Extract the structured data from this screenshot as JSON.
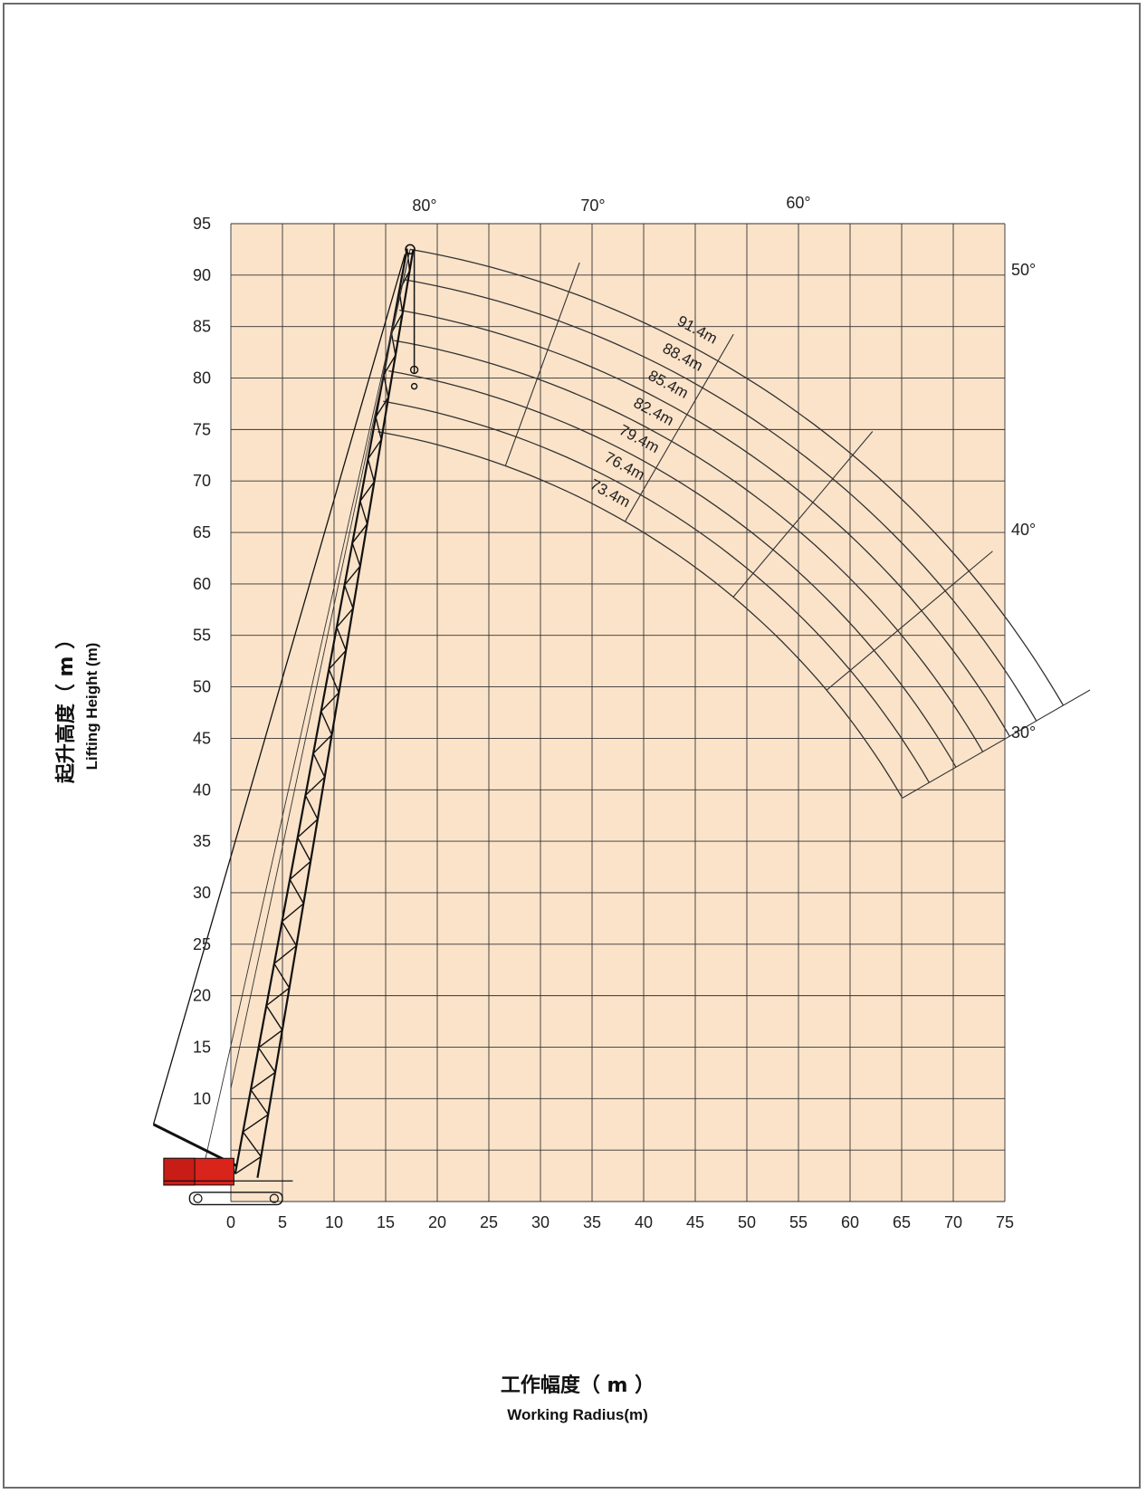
{
  "chart_data": {
    "type": "line",
    "title": "",
    "xlabel_cn": "工作幅度（ m ）",
    "xlabel": "Working Radius(m)",
    "ylabel_cn": "起升高度（ m ）",
    "ylabel": "Lifting Height (m)",
    "xlim": [
      0,
      75
    ],
    "ylim": [
      0,
      95
    ],
    "x_ticks": [
      "0",
      "5",
      "10",
      "15",
      "20",
      "25",
      "30",
      "35",
      "40",
      "45",
      "50",
      "55",
      "60",
      "65",
      "70",
      "75"
    ],
    "y_ticks": [
      "10",
      "15",
      "20",
      "25",
      "30",
      "35",
      "40",
      "45",
      "50",
      "55",
      "60",
      "65",
      "70",
      "75",
      "80",
      "85",
      "90",
      "95"
    ],
    "grid": true,
    "boom_lengths": [
      {
        "label": "91.4m",
        "length": 91.4
      },
      {
        "label": "88.4m",
        "length": 88.4
      },
      {
        "label": "85.4m",
        "length": 85.4
      },
      {
        "label": "82.4m",
        "length": 82.4
      },
      {
        "label": "79.4m",
        "length": 79.4
      },
      {
        "label": "76.4m",
        "length": 76.4
      },
      {
        "label": "73.4m",
        "length": 73.4
      }
    ],
    "boom_angles": [
      {
        "label": "80°",
        "angle": 80
      },
      {
        "label": "70°",
        "angle": 70
      },
      {
        "label": "60°",
        "angle": 60
      },
      {
        "label": "50°",
        "angle": 50
      },
      {
        "label": "40°",
        "angle": 40
      },
      {
        "label": "30°",
        "angle": 30
      }
    ],
    "colors": {
      "background": "#fbe3c9",
      "grid": "#333333",
      "curves": "#333333",
      "crane_body": "#d9241c"
    }
  }
}
